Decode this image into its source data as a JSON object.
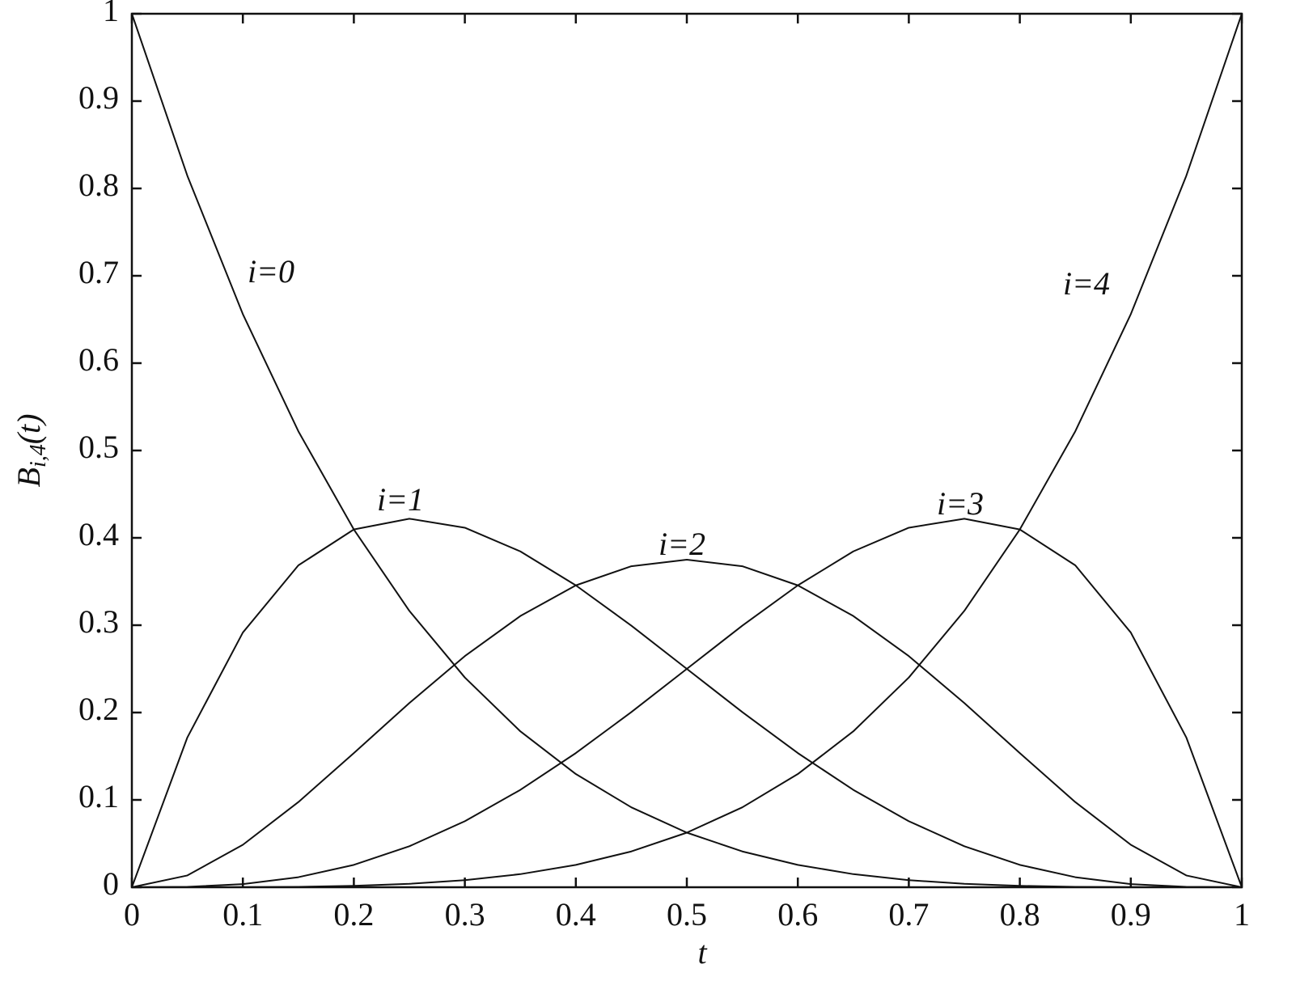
{
  "chart_data": {
    "type": "line",
    "xlabel": "t",
    "ylabel": [
      "B",
      "i,4",
      "(t)"
    ],
    "x": [
      0,
      0.05,
      0.1,
      0.15,
      0.2,
      0.25,
      0.3,
      0.35,
      0.4,
      0.45,
      0.5,
      0.55,
      0.6,
      0.65,
      0.7,
      0.75,
      0.8,
      0.85,
      0.9,
      0.95,
      1
    ],
    "series": [
      {
        "name": "i=0",
        "color": "#111111",
        "values": [
          1,
          0.8145,
          0.6561,
          0.522,
          0.4096,
          0.3164,
          0.2401,
          0.1785,
          0.1296,
          0.0915,
          0.0625,
          0.041,
          0.0256,
          0.015,
          0.0081,
          0.0039,
          0.0016,
          0.0005,
          0.0001,
          0,
          0
        ]
      },
      {
        "name": "i=1",
        "color": "#111111",
        "values": [
          0,
          0.1715,
          0.2916,
          0.3685,
          0.4096,
          0.4219,
          0.4116,
          0.3845,
          0.3456,
          0.2995,
          0.25,
          0.2005,
          0.1536,
          0.1115,
          0.0756,
          0.0469,
          0.0256,
          0.0115,
          0.0036,
          0.0005,
          0
        ]
      },
      {
        "name": "i=2",
        "color": "#111111",
        "values": [
          0,
          0.0135,
          0.0486,
          0.0975,
          0.1536,
          0.2109,
          0.2646,
          0.3105,
          0.3456,
          0.3675,
          0.375,
          0.3675,
          0.3456,
          0.3105,
          0.2646,
          0.2109,
          0.1536,
          0.0975,
          0.0486,
          0.0135,
          0
        ]
      },
      {
        "name": "i=3",
        "color": "#111111",
        "values": [
          0,
          0.0005,
          0.0036,
          0.0115,
          0.0256,
          0.0469,
          0.0756,
          0.1115,
          0.1536,
          0.2005,
          0.25,
          0.2995,
          0.3456,
          0.3845,
          0.4116,
          0.4219,
          0.4096,
          0.3685,
          0.2916,
          0.1715,
          0
        ]
      },
      {
        "name": "i=4",
        "color": "#111111",
        "values": [
          0,
          0,
          0.0001,
          0.0005,
          0.0016,
          0.0039,
          0.0081,
          0.015,
          0.0256,
          0.041,
          0.0625,
          0.0915,
          0.1296,
          0.1785,
          0.2401,
          0.3164,
          0.4096,
          0.522,
          0.6561,
          0.8145,
          1
        ]
      }
    ],
    "xlim": [
      0,
      1
    ],
    "ylim": [
      0,
      1
    ],
    "xticks": [
      0,
      0.1,
      0.2,
      0.3,
      0.4,
      0.5,
      0.6,
      0.7,
      0.8,
      0.9,
      1
    ],
    "yticks": [
      0,
      0.1,
      0.2,
      0.3,
      0.4,
      0.5,
      0.6,
      0.7,
      0.8,
      0.9,
      1
    ],
    "grid": false,
    "legend": false
  }
}
